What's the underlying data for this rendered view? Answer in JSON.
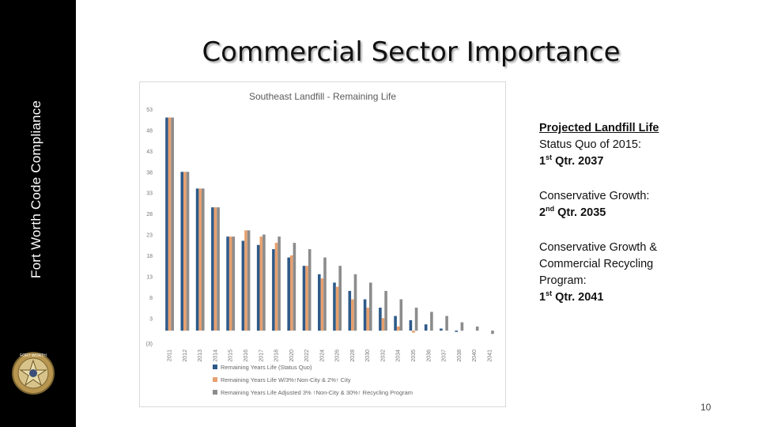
{
  "sidebar": {
    "vertical_title": "Fort Worth Code Compliance",
    "badge_text": "FORT WORTH"
  },
  "slide": {
    "title": "Commercial Sector Importance",
    "page_number": "10"
  },
  "notes": {
    "heading": "Projected Landfill Life",
    "items": [
      {
        "label": "Status Quo of 2015:",
        "value_prefix": "1",
        "value_sup": "st",
        "value_rest": " Qtr. 2037"
      },
      {
        "label": "Conservative Growth:",
        "value_prefix": "2",
        "value_sup": "nd",
        "value_rest": " Qtr. 2035"
      },
      {
        "label_lines": [
          "Conservative Growth &",
          "Commercial Recycling",
          "Program:"
        ],
        "value_prefix": "1",
        "value_sup": "st",
        "value_rest": " Qtr. 2041"
      }
    ]
  },
  "colors": {
    "series1": "#2e5a88",
    "series2": "#e8a06e",
    "series3": "#8c8c8c"
  },
  "chart_data": {
    "type": "bar",
    "title": "Southeast Landfill - Remaining Life",
    "ylim": [
      -3,
      53
    ],
    "yticks": [
      53,
      48,
      43,
      38,
      33,
      28,
      23,
      18,
      13,
      8,
      3,
      -3
    ],
    "ytick_labels": [
      "53",
      "48",
      "43",
      "38",
      "33",
      "28",
      "23",
      "18",
      "13",
      "8",
      "3",
      "(3)"
    ],
    "categories": [
      "2011",
      "2012",
      "2013",
      "2014",
      "2015",
      "2016",
      "2017",
      "2018",
      "2020",
      "2022",
      "2024",
      "2026",
      "2028",
      "2030",
      "2032",
      "2034",
      "2035",
      "2036",
      "2037",
      "2038",
      "2040",
      "2041"
    ],
    "series": [
      {
        "name": "Remaining Years Life (Status Quo)",
        "values": [
          51,
          38,
          34,
          29.5,
          22.5,
          21.5,
          20.5,
          19.5,
          17.5,
          15.5,
          13.5,
          11.5,
          9.5,
          7.5,
          5.5,
          3.5,
          2.5,
          1.5,
          0.5,
          -0.3,
          null,
          null
        ]
      },
      {
        "name": "Remaining Years Life W/3%↑Non-City & 2%↑ City",
        "values": [
          51,
          38,
          34,
          29.5,
          22.5,
          24,
          22.5,
          21,
          18,
          15.5,
          12.5,
          10.5,
          7.5,
          5.5,
          3,
          1,
          -0.5,
          null,
          null,
          null,
          null,
          null
        ]
      },
      {
        "name": "Remaining Years Life Adjusted 3% ↑Non-City & 30%↑ Recycling Program",
        "values": [
          51,
          38,
          34,
          29.5,
          22.5,
          24,
          23,
          22.5,
          21,
          19.5,
          17.5,
          15.5,
          13.5,
          11.5,
          9.5,
          7.5,
          5.5,
          4.5,
          3.5,
          2,
          1,
          -0.8
        ]
      }
    ],
    "legend_position": "bottom"
  }
}
